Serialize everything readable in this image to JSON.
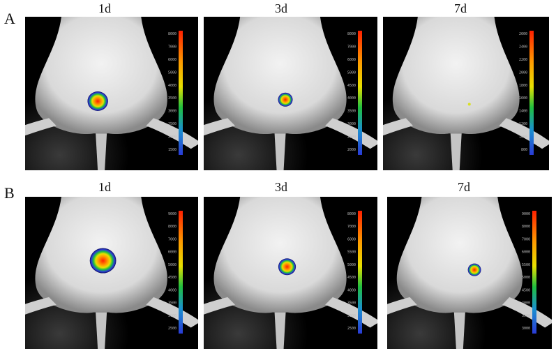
{
  "rows": [
    {
      "label": "A",
      "panels": [
        {
          "day": "1d",
          "scale_ticks": [
            "8000",
            "7000",
            "6000",
            "5000",
            "4000",
            "3500",
            "3000",
            "2500",
            "2000",
            "1500"
          ]
        },
        {
          "day": "3d",
          "scale_ticks": [
            "8000",
            "7000",
            "6000",
            "5000",
            "4500",
            "4000",
            "3500",
            "3000",
            "2500",
            "2000"
          ]
        },
        {
          "day": "7d",
          "scale_ticks": [
            "2600",
            "2400",
            "2200",
            "2000",
            "1800",
            "1600",
            "1400",
            "1200",
            "1000",
            "800"
          ]
        }
      ]
    },
    {
      "label": "B",
      "panels": [
        {
          "day": "1d",
          "scale_ticks": [
            "9000",
            "8000",
            "7000",
            "6000",
            "5000",
            "4500",
            "4000",
            "3500",
            "3000",
            "2500"
          ]
        },
        {
          "day": "3d",
          "scale_ticks": [
            "8000",
            "7000",
            "6000",
            "5500",
            "5000",
            "4500",
            "4000",
            "3500",
            "3000",
            "2500"
          ]
        },
        {
          "day": "7d",
          "scale_ticks": [
            "9000",
            "8000",
            "7000",
            "6000",
            "5500",
            "5000",
            "4500",
            "4000",
            "3500",
            "3000"
          ]
        }
      ]
    }
  ],
  "colors": {
    "background": "#000000",
    "fur": "#d9d9d9",
    "signal_low": "#2a3bd6",
    "signal_mid": "#20c040",
    "signal_high": "#ff2000"
  }
}
